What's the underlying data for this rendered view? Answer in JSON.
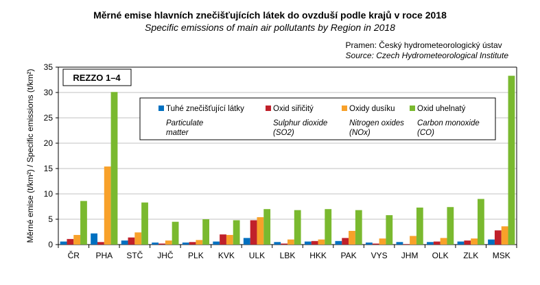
{
  "title": "Měrné emise hlavních znečišťujících látek do ovzduší podle krajů v roce 2018",
  "subtitle": "Specific emissions of main air pollutants by Region in 2018",
  "source_cz": "Pramen: Český hydrometeorologický ústav",
  "source_en": "Source: Czech Hydrometeorological Institute",
  "chart_data": {
    "type": "bar",
    "title": "Měrné emise hlavních znečišťujících látek do ovzduší podle krajů v roce 2018",
    "annotation": "REZZO 1–4",
    "ylabel": "Měrné emise (t/km²) / Specific emissions (t/km²)",
    "xlabel": "",
    "ylim": [
      0,
      35
    ],
    "yticks": [
      0,
      5,
      10,
      15,
      20,
      25,
      30,
      35
    ],
    "grid": true,
    "legend_position": "top-center",
    "categories": [
      "ČR",
      "PHA",
      "STČ",
      "JHČ",
      "PLK",
      "KVK",
      "ULK",
      "LBK",
      "HKK",
      "PAK",
      "VYS",
      "JHM",
      "OLK",
      "ZLK",
      "MSK"
    ],
    "series": [
      {
        "name": "Tuhé znečišťující látky",
        "name_en": "Particulate matter",
        "color": "#0070c0",
        "values": [
          0.6,
          2.2,
          0.8,
          0.4,
          0.4,
          0.6,
          1.3,
          0.5,
          0.6,
          0.7,
          0.4,
          0.5,
          0.5,
          0.6,
          1.0
        ]
      },
      {
        "name": "Oxid siřičitý",
        "name_en": "Sulphur dioxide (SO2)",
        "color": "#c0202a",
        "values": [
          1.1,
          0.5,
          1.4,
          0.2,
          0.5,
          2.0,
          4.8,
          0.2,
          0.7,
          1.3,
          0.2,
          0.1,
          0.6,
          0.8,
          2.8
        ]
      },
      {
        "name": "Oxidy dusíku",
        "name_en": "Nitrogen oxides (NOx)",
        "color": "#f8a12a",
        "values": [
          1.9,
          15.4,
          2.4,
          0.8,
          0.9,
          1.9,
          5.4,
          1.0,
          1.0,
          2.7,
          1.2,
          1.7,
          1.3,
          1.2,
          3.6
        ]
      },
      {
        "name": "Oxid uhelnatý",
        "name_en": "Carbon monoxide (CO)",
        "color": "#7ab92f",
        "values": [
          8.6,
          30.1,
          8.3,
          4.5,
          5.0,
          4.8,
          7.0,
          6.8,
          7.0,
          6.8,
          5.8,
          7.3,
          7.4,
          9.0,
          33.3
        ]
      }
    ]
  }
}
